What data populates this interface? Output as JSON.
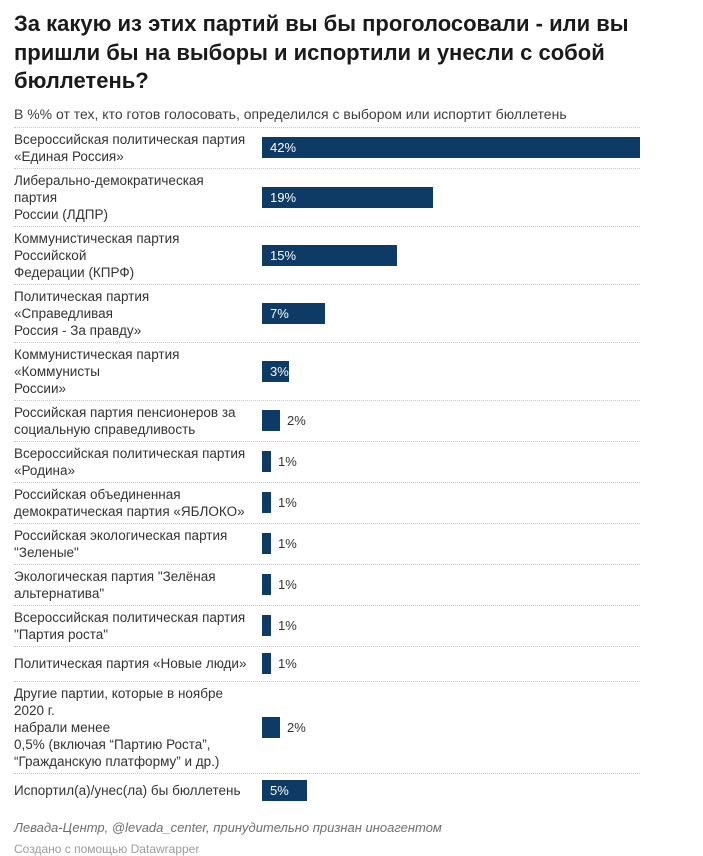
{
  "header": {
    "title": "За какую из этих партий вы бы проголосовали - или вы пришли бы на выборы и испортили и унесли с собой бюллетень?",
    "subtitle": "В %% от тех, кто готов голосовать, определился с выбором или испортит бюллетень"
  },
  "chart_data": {
    "type": "bar",
    "orientation": "horizontal",
    "title": "За какую из этих партий вы бы проголосовали - или вы пришли бы на выборы и испортили и унесли с собой бюллетень?",
    "subtitle": "В %% от тех, кто готов голосовать, определился с выбором или испортит бюллетень",
    "unit": "%",
    "xmax_scale": 42,
    "bar_color": "#0e3a66",
    "value_label_inside_color": "#ffffff",
    "value_label_outside_color": "#333333",
    "inside_label_min_value": 3,
    "grid": "dotted row separators",
    "categories": [
      "Всероссийская политическая партия «Единая Россия»",
      "Либерально-демократическая партия России (ЛДПР)",
      "Коммунистическая партия Российской Федерации (КПРФ)",
      "Политическая партия «Справедливая Россия - За правду»",
      "Коммунистическая партия «Коммунисты России»",
      "Российская партия пенсионеров за социальную справедливость",
      "Всероссийская политическая партия «Родина»",
      "Российская объединенная демократическая партия «ЯБЛОКО»",
      "Российская экологическая партия \"Зеленые\"",
      "Экологическая партия \"Зелёная альтернатива\"",
      "Всероссийская политическая партия \"Партия роста\"",
      "Политическая партия «Новые люди»",
      "Другие партии, которые в ноябре 2020 г. набрали менее 0,5% (включая “Партию Роста”, “Гражданскую платформу” и др.)",
      "Испортил(а)/унес(ла) бы бюллетень"
    ],
    "values": [
      42,
      19,
      15,
      7,
      3,
      2,
      1,
      1,
      1,
      1,
      1,
      1,
      2,
      5
    ],
    "rows": [
      {
        "label": "Всероссийская политическая партия\n«Единая Россия»",
        "value": 42,
        "display": "42%"
      },
      {
        "label": "Либерально-демократическая партия\nРоссии (ЛДПР)",
        "value": 19,
        "display": "19%"
      },
      {
        "label": "Коммунистическая партия Российской\nФедерации (КПРФ)",
        "value": 15,
        "display": "15%"
      },
      {
        "label": "Политическая партия «Справедливая\nРоссия - За правду»",
        "value": 7,
        "display": "7%"
      },
      {
        "label": "Коммунистическая партия «Коммунисты\nРоссии»",
        "value": 3,
        "display": "3%"
      },
      {
        "label": "Российская партия пенсионеров за\nсоциальную справедливость",
        "value": 2,
        "display": "2%"
      },
      {
        "label": "Всероссийская политическая партия\n«Родина»",
        "value": 1,
        "display": "1%"
      },
      {
        "label": "Российская объединенная\nдемократическая партия «ЯБЛОКО»",
        "value": 1,
        "display": "1%"
      },
      {
        "label": "Российская экологическая партия\n\"Зеленые\"",
        "value": 1,
        "display": "1%"
      },
      {
        "label": "Экологическая партия \"Зелёная\nальтернатива\"",
        "value": 1,
        "display": "1%"
      },
      {
        "label": "Всероссийская политическая партия\n\"Партия роста\"",
        "value": 1,
        "display": "1%"
      },
      {
        "label": "Политическая партия «Новые люди»",
        "value": 1,
        "display": "1%"
      },
      {
        "label": "Другие партии, которые в ноябре 2020 г.\nнабрали менее\n0,5% (включая “Партию Роста”,\n“Гражданскую платформу” и др.)",
        "value": 2,
        "display": "2%"
      },
      {
        "label": "Испортил(а)/унес(ла) бы бюллетень",
        "value": 5,
        "display": "5%"
      }
    ]
  },
  "footer": {
    "source": "Левада-Центр, @levada_center, принудительно признан иноагентом",
    "credit": "Создано с помощью Datawrapper"
  }
}
